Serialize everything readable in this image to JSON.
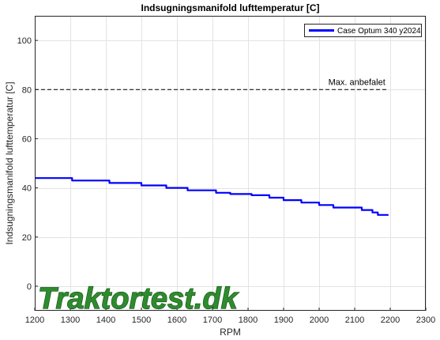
{
  "chart_data": {
    "type": "line",
    "title": "Indsugningsmanifold lufttemperatur [C]",
    "xlabel": "RPM",
    "ylabel": "Indsugningsmanifold lufttemperatur [C]",
    "xlim": [
      1200,
      2300
    ],
    "ylim": [
      -10,
      110
    ],
    "xticks": [
      "1200",
      "1300",
      "1400",
      "1500",
      "1600",
      "1700",
      "1800",
      "1900",
      "2000",
      "2100",
      "2200",
      "2300"
    ],
    "yticks": [
      "0",
      "20",
      "40",
      "60",
      "80",
      "100"
    ],
    "xtick_values": [
      1200,
      1300,
      1400,
      1500,
      1600,
      1700,
      1800,
      1900,
      2000,
      2100,
      2200,
      2300
    ],
    "ytick_values": [
      0,
      20,
      40,
      60,
      80,
      100
    ],
    "grid": true,
    "legend_position": "top-right",
    "series": [
      {
        "name": "Case Optum 340 y2024",
        "color": "#0000ff",
        "step": true,
        "x": [
          1200,
          1290,
          1305,
          1410,
          1500,
          1570,
          1630,
          1710,
          1750,
          1810,
          1860,
          1900,
          1950,
          2000,
          2040,
          2120,
          2150,
          2165,
          2195
        ],
        "y": [
          44,
          44,
          43,
          42,
          41,
          40,
          39,
          38,
          37.5,
          37,
          36,
          35,
          34,
          33,
          32,
          31,
          30,
          29,
          29
        ]
      }
    ],
    "reference_line": {
      "label": "Max. anbefalet",
      "y": 80,
      "x_start": 1200,
      "x_end": 2195,
      "color": "#000000"
    }
  },
  "watermark": {
    "text": "Traktortest.dk"
  }
}
